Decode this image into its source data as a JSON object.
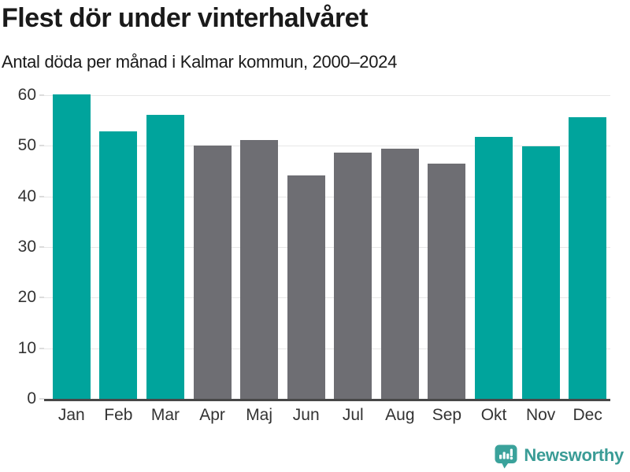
{
  "header": {
    "title": "Flest dör under vinterhalvåret",
    "subtitle": "Antal döda per månad i Kalmar kommun, 2000–2024"
  },
  "chart_data": {
    "type": "bar",
    "title": "Flest dör under vinterhalvåret",
    "subtitle": "Antal döda per månad i Kalmar kommun, 2000–2024",
    "categories": [
      "Jan",
      "Feb",
      "Mar",
      "Apr",
      "Maj",
      "Jun",
      "Jul",
      "Aug",
      "Sep",
      "Okt",
      "Nov",
      "Dec"
    ],
    "values": [
      60.1,
      52.9,
      56.1,
      50.1,
      51.1,
      44.2,
      48.7,
      49.4,
      46.5,
      51.7,
      49.9,
      55.6
    ],
    "bar_colors": [
      "#00a49c",
      "#00a49c",
      "#00a49c",
      "#6e6e73",
      "#6e6e73",
      "#6e6e73",
      "#6e6e73",
      "#6e6e73",
      "#6e6e73",
      "#00a49c",
      "#00a49c",
      "#00a49c"
    ],
    "xlabel": "",
    "ylabel": "",
    "ylim": [
      0,
      60
    ],
    "yticks": [
      0,
      10,
      20,
      30,
      40,
      50,
      60
    ],
    "grid": true,
    "legend": "none",
    "colors": {
      "winter_bar": "#00a49c",
      "summer_bar": "#6e6e73",
      "gridline": "#e7e7e7",
      "axis_line": "#474747",
      "tick": "#dcdcdc",
      "text": "#1a1a1a",
      "axis_text": "#333333"
    }
  },
  "footer": {
    "brand": "Newsworthy",
    "logo_icon": "newsworthy-speech-bubble-bar-chart-icon",
    "brand_color": "#3a9c96",
    "icon_color": "#3aa29b"
  }
}
